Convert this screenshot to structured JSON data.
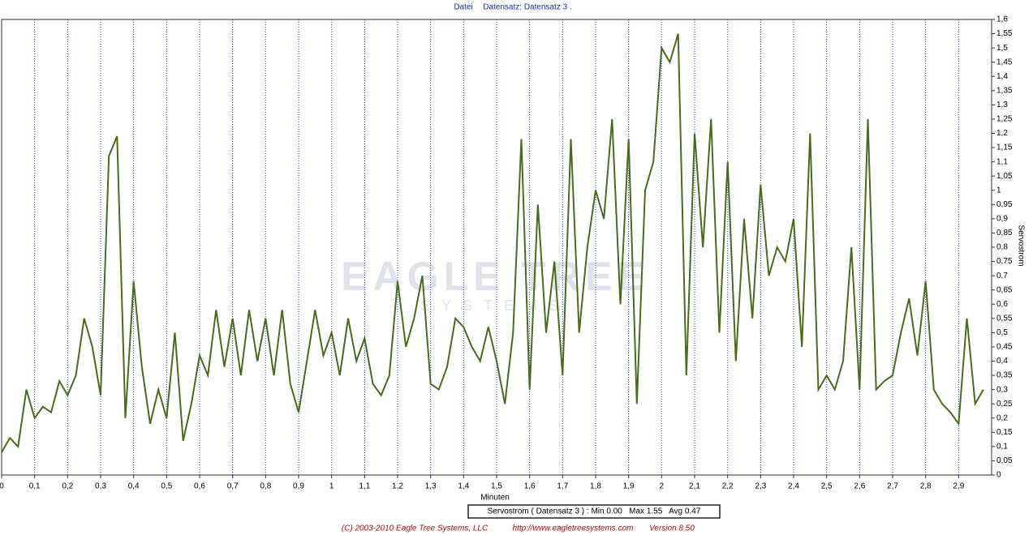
{
  "header": {
    "menu": "Datei",
    "dataset": "Datensatz: Datensatz 3 ."
  },
  "watermark": {
    "brand": "EAGLE TREE",
    "sub": "SYSTEMS"
  },
  "legend": {
    "text": "Servostrom ( Datensatz 3 ) : Min 0.00   Max 1.55   Avg 0.47"
  },
  "footer": {
    "copyright": "(C) 2003-2010 Eagle Tree Systems, LLC",
    "url": "http://www.eagletreesystems.com",
    "version": "Version 8.50"
  },
  "chart_data": {
    "type": "line",
    "x_label": "Minuten",
    "y_label": "Servostrom",
    "grid": true,
    "y_axis_side": "right",
    "xlim": [
      0,
      3.0
    ],
    "ylim": [
      0,
      1.6
    ],
    "xticks": [
      0,
      {
        "value": 0.1,
        "label": "0,1"
      },
      {
        "value": 0.2,
        "label": "0,2"
      },
      {
        "value": 0.3,
        "label": "0,3"
      },
      {
        "value": 0.4,
        "label": "0,4"
      },
      {
        "value": 0.5,
        "label": "0,5"
      },
      {
        "value": 0.6,
        "label": "0,6"
      },
      {
        "value": 0.7,
        "label": "0,7"
      },
      {
        "value": 0.8,
        "label": "0,8"
      },
      {
        "value": 0.9,
        "label": "0,9"
      },
      1,
      {
        "value": 1.1,
        "label": "1,1"
      },
      {
        "value": 1.2,
        "label": "1,2"
      },
      {
        "value": 1.3,
        "label": "1,3"
      },
      {
        "value": 1.4,
        "label": "1,4"
      },
      {
        "value": 1.5,
        "label": "1,5"
      },
      {
        "value": 1.6,
        "label": "1,6"
      },
      {
        "value": 1.7,
        "label": "1,7"
      },
      {
        "value": 1.8,
        "label": "1,8"
      },
      {
        "value": 1.9,
        "label": "1,9"
      },
      2,
      {
        "value": 2.1,
        "label": "2,1"
      },
      {
        "value": 2.2,
        "label": "2,2"
      },
      {
        "value": 2.3,
        "label": "2,3"
      },
      {
        "value": 2.4,
        "label": "2,4"
      },
      {
        "value": 2.5,
        "label": "2,5"
      },
      {
        "value": 2.6,
        "label": "2,6"
      },
      {
        "value": 2.7,
        "label": "2,7"
      },
      {
        "value": 2.8,
        "label": "2,8"
      },
      {
        "value": 2.9,
        "label": "2,9"
      }
    ],
    "yticks": [
      0,
      {
        "value": 0.05,
        "label": "0,05"
      },
      {
        "value": 0.1,
        "label": "0,1"
      },
      {
        "value": 0.15,
        "label": "0,15"
      },
      {
        "value": 0.2,
        "label": "0,2"
      },
      {
        "value": 0.25,
        "label": "0,25"
      },
      {
        "value": 0.3,
        "label": "0,3"
      },
      {
        "value": 0.35,
        "label": "0,35"
      },
      {
        "value": 0.4,
        "label": "0,4"
      },
      {
        "value": 0.45,
        "label": "0,45"
      },
      {
        "value": 0.5,
        "label": "0,5"
      },
      {
        "value": 0.55,
        "label": "0,55"
      },
      {
        "value": 0.6,
        "label": "0,6"
      },
      {
        "value": 0.65,
        "label": "0,65"
      },
      {
        "value": 0.7,
        "label": "0,7"
      },
      {
        "value": 0.75,
        "label": "0,75"
      },
      {
        "value": 0.8,
        "label": "0,8"
      },
      {
        "value": 0.85,
        "label": "0,85"
      },
      {
        "value": 0.9,
        "label": "0,9"
      },
      {
        "value": 0.95,
        "label": "0,95"
      },
      1,
      {
        "value": 1.05,
        "label": "1,05"
      },
      {
        "value": 1.1,
        "label": "1,1"
      },
      {
        "value": 1.15,
        "label": "1,15"
      },
      {
        "value": 1.2,
        "label": "1,2"
      },
      {
        "value": 1.25,
        "label": "1,25"
      },
      {
        "value": 1.3,
        "label": "1,3"
      },
      {
        "value": 1.35,
        "label": "1,35"
      },
      {
        "value": 1.4,
        "label": "1,4"
      },
      {
        "value": 1.45,
        "label": "1,45"
      },
      {
        "value": 1.5,
        "label": "1,5"
      },
      {
        "value": 1.55,
        "label": "1,55"
      },
      {
        "value": 1.6,
        "label": "1,6"
      }
    ],
    "x": [
      0,
      0.025,
      0.05,
      0.075,
      0.1,
      0.125,
      0.15,
      0.175,
      0.2,
      0.225,
      0.25,
      0.275,
      0.3,
      0.325,
      0.35,
      0.375,
      0.4,
      0.425,
      0.45,
      0.475,
      0.5,
      0.525,
      0.55,
      0.575,
      0.6,
      0.625,
      0.65,
      0.675,
      0.7,
      0.725,
      0.75,
      0.775,
      0.8,
      0.825,
      0.85,
      0.875,
      0.9,
      0.925,
      0.95,
      0.975,
      1.0,
      1.025,
      1.05,
      1.075,
      1.1,
      1.125,
      1.15,
      1.175,
      1.2,
      1.225,
      1.25,
      1.275,
      1.3,
      1.325,
      1.35,
      1.375,
      1.4,
      1.425,
      1.45,
      1.475,
      1.5,
      1.525,
      1.55,
      1.575,
      1.6,
      1.625,
      1.65,
      1.675,
      1.7,
      1.725,
      1.75,
      1.775,
      1.8,
      1.825,
      1.85,
      1.875,
      1.9,
      1.925,
      1.95,
      1.975,
      2.0,
      2.025,
      2.05,
      2.075,
      2.1,
      2.125,
      2.15,
      2.175,
      2.2,
      2.225,
      2.25,
      2.275,
      2.3,
      2.325,
      2.35,
      2.375,
      2.4,
      2.425,
      2.45,
      2.475,
      2.5,
      2.525,
      2.55,
      2.575,
      2.6,
      2.625,
      2.65,
      2.675,
      2.7,
      2.725,
      2.75,
      2.775,
      2.8,
      2.825,
      2.85,
      2.875,
      2.9,
      2.925,
      2.95,
      2.975
    ],
    "series": [
      {
        "name": "Servostrom",
        "color": "#4b6a1e",
        "values": [
          0.08,
          0.13,
          0.1,
          0.3,
          0.2,
          0.24,
          0.22,
          0.33,
          0.28,
          0.35,
          0.55,
          0.45,
          0.28,
          1.12,
          1.19,
          0.2,
          0.68,
          0.38,
          0.18,
          0.3,
          0.2,
          0.5,
          0.12,
          0.25,
          0.42,
          0.35,
          0.58,
          0.38,
          0.55,
          0.35,
          0.58,
          0.4,
          0.55,
          0.35,
          0.58,
          0.32,
          0.22,
          0.4,
          0.58,
          0.42,
          0.5,
          0.35,
          0.55,
          0.4,
          0.48,
          0.32,
          0.28,
          0.35,
          0.68,
          0.45,
          0.55,
          0.7,
          0.32,
          0.3,
          0.38,
          0.55,
          0.52,
          0.45,
          0.4,
          0.52,
          0.4,
          0.25,
          0.5,
          1.18,
          0.3,
          0.95,
          0.5,
          0.75,
          0.35,
          1.18,
          0.5,
          0.8,
          1.0,
          0.9,
          1.25,
          0.6,
          1.18,
          0.25,
          1.0,
          1.1,
          1.5,
          1.45,
          1.55,
          0.35,
          1.2,
          0.8,
          1.25,
          0.5,
          1.1,
          0.4,
          0.9,
          0.55,
          1.02,
          0.7,
          0.8,
          0.75,
          0.9,
          0.45,
          1.2,
          0.3,
          0.35,
          0.3,
          0.4,
          0.8,
          0.3,
          1.25,
          0.3,
          0.33,
          0.35,
          0.5,
          0.62,
          0.42,
          0.68,
          0.3,
          0.25,
          0.22,
          0.18,
          0.55,
          0.25,
          0.3
        ]
      }
    ]
  }
}
